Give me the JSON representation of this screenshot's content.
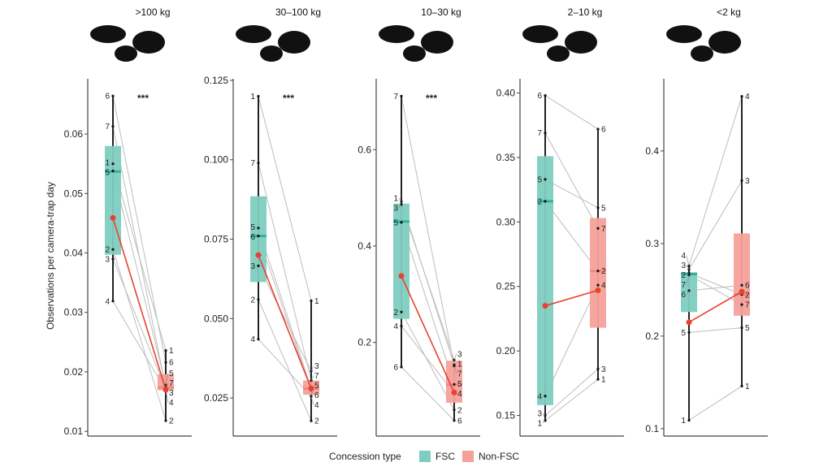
{
  "chart_data": {
    "type": "box",
    "ylabel": "Observations per camera-trap day",
    "legend": {
      "title": "Concession type",
      "position": "bottom",
      "entries": [
        "FSC",
        "Non-FSC"
      ]
    },
    "colors": {
      "FSC": "#7ecdc0",
      "Non-FSC": "#f5a09a",
      "mean": "#e8412f",
      "pair_line": "#bdbdbd",
      "median_FSC": "#2fb3a2",
      "median_Non-FSC": "#ef8a83"
    },
    "panels": [
      {
        "title": ">100 kg",
        "significance": "***",
        "ylim": [
          0.0092,
          0.0693
        ],
        "yticks": [
          0.01,
          0.02,
          0.03,
          0.04,
          0.05,
          0.06
        ],
        "tick_labels": [
          "0.01",
          "0.02",
          "0.03",
          "0.04",
          "0.05",
          "0.06"
        ],
        "FSC": {
          "box": [
            0.0397,
            0.0537,
            0.058
          ],
          "mean": 0.0459,
          "points": [
            {
              "id": "1",
              "v": 0.055
            },
            {
              "id": "2",
              "v": 0.0406
            },
            {
              "id": "3",
              "v": 0.039
            },
            {
              "id": "4",
              "v": 0.0319
            },
            {
              "id": "5",
              "v": 0.0538
            },
            {
              "id": "6",
              "v": 0.0664
            },
            {
              "id": "7",
              "v": 0.0613
            }
          ]
        },
        "Non-FSC": {
          "box": [
            0.0169,
            0.0174,
            0.0196
          ],
          "mean": 0.017,
          "points": [
            {
              "id": "1",
              "v": 0.0236
            },
            {
              "id": "2",
              "v": 0.0118
            },
            {
              "id": "3",
              "v": 0.0171
            },
            {
              "id": "4",
              "v": 0.0169
            },
            {
              "id": "5",
              "v": 0.0178
            },
            {
              "id": "6",
              "v": 0.0216
            },
            {
              "id": "7",
              "v": 0.0174
            }
          ]
        }
      },
      {
        "title": "30–100 kg",
        "significance": "***",
        "ylim": [
          0.013,
          0.1255
        ],
        "yticks": [
          0.025,
          0.05,
          0.075,
          0.1,
          0.125
        ],
        "tick_labels": [
          "0.025",
          "0.050",
          "0.075",
          "0.100",
          "0.125"
        ],
        "FSC": {
          "box": [
            0.0615,
            0.076,
            0.0885
          ],
          "mean": 0.07,
          "points": [
            {
              "id": "1",
              "v": 0.12
            },
            {
              "id": "2",
              "v": 0.056
            },
            {
              "id": "3",
              "v": 0.0666
            },
            {
              "id": "4",
              "v": 0.0435
            },
            {
              "id": "5",
              "v": 0.0785
            },
            {
              "id": "6",
              "v": 0.076
            },
            {
              "id": "7",
              "v": 0.099
            }
          ]
        },
        "Non-FSC": {
          "box": [
            0.026,
            0.028,
            0.0305
          ],
          "mean": 0.028,
          "points": [
            {
              "id": "1",
              "v": 0.0556
            },
            {
              "id": "2",
              "v": 0.0178
            },
            {
              "id": "3",
              "v": 0.0335
            },
            {
              "id": "4",
              "v": 0.0255
            },
            {
              "id": "5",
              "v": 0.028
            },
            {
              "id": "6",
              "v": 0.0274
            },
            {
              "id": "7",
              "v": 0.0305
            }
          ]
        }
      },
      {
        "title": "10–30 kg",
        "significance": "***",
        "ylim": [
          0.0057,
          0.747
        ],
        "yticks": [
          0.2,
          0.4,
          0.6
        ],
        "tick_labels": [
          "0.2",
          "0.4",
          "0.6"
        ],
        "FSC": {
          "box": [
            0.249,
            0.451,
            0.488
          ],
          "mean": 0.338,
          "points": [
            {
              "id": "1",
              "v": 0.4925
            },
            {
              "id": "2",
              "v": 0.263
            },
            {
              "id": "3",
              "v": 0.486
            },
            {
              "id": "4",
              "v": 0.234
            },
            {
              "id": "5",
              "v": 0.449
            },
            {
              "id": "6",
              "v": 0.149
            },
            {
              "id": "7",
              "v": 0.711
            }
          ]
        },
        "Non-FSC": {
          "box": [
            0.075,
            0.112,
            0.162
          ],
          "mean": 0.096,
          "points": [
            {
              "id": "1",
              "v": 0.1535
            },
            {
              "id": "2",
              "v": 0.06
            },
            {
              "id": "3",
              "v": 0.1636
            },
            {
              "id": "4",
              "v": 0.095
            },
            {
              "id": "5",
              "v": 0.113
            },
            {
              "id": "6",
              "v": 0.038
            },
            {
              "id": "7",
              "v": 0.151
            }
          ]
        }
      },
      {
        "title": "2–10 kg",
        "significance": "",
        "ylim": [
          0.134,
          0.411
        ],
        "yticks": [
          0.15,
          0.2,
          0.25,
          0.3,
          0.35,
          0.4
        ],
        "tick_labels": [
          "0.15",
          "0.20",
          "0.25",
          "0.30",
          "0.35",
          "0.40"
        ],
        "FSC": {
          "box": [
            0.158,
            0.316,
            0.351
          ],
          "mean": 0.235,
          "points": [
            {
              "id": "1",
              "v": 0.146
            },
            {
              "id": "2",
              "v": 0.316
            },
            {
              "id": "3",
              "v": 0.15
            },
            {
              "id": "4",
              "v": 0.165
            },
            {
              "id": "5",
              "v": 0.333
            },
            {
              "id": "6",
              "v": 0.398
            },
            {
              "id": "7",
              "v": 0.369
            }
          ]
        },
        "Non-FSC": {
          "box": [
            0.218,
            0.262,
            0.303
          ],
          "mean": 0.247,
          "points": [
            {
              "id": "1",
              "v": 0.178
            },
            {
              "id": "2",
              "v": 0.262
            },
            {
              "id": "3",
              "v": 0.186
            },
            {
              "id": "4",
              "v": 0.251
            },
            {
              "id": "5",
              "v": 0.311
            },
            {
              "id": "6",
              "v": 0.372
            },
            {
              "id": "7",
              "v": 0.295
            }
          ]
        }
      },
      {
        "title": "<2 kg",
        "significance": "",
        "ylim": [
          0.092,
          0.478
        ],
        "yticks": [
          0.1,
          0.2,
          0.3,
          0.4
        ],
        "tick_labels": [
          "0.1",
          "0.2",
          "0.3",
          "0.4"
        ],
        "FSC": {
          "box": [
            0.226,
            0.267,
            0.269
          ],
          "mean": 0.215,
          "points": [
            {
              "id": "1",
              "v": 0.109
            },
            {
              "id": "2",
              "v": 0.268
            },
            {
              "id": "3",
              "v": 0.272
            },
            {
              "id": "4",
              "v": 0.276
            },
            {
              "id": "5",
              "v": 0.204
            },
            {
              "id": "6",
              "v": 0.249
            },
            {
              "id": "7",
              "v": 0.266
            }
          ]
        },
        "Non-FSC": {
          "box": [
            0.222,
            0.245,
            0.311
          ],
          "mean": 0.248,
          "points": [
            {
              "id": "1",
              "v": 0.146
            },
            {
              "id": "2",
              "v": 0.245
            },
            {
              "id": "3",
              "v": 0.368
            },
            {
              "id": "4",
              "v": 0.459
            },
            {
              "id": "5",
              "v": 0.209
            },
            {
              "id": "6",
              "v": 0.255
            },
            {
              "id": "7",
              "v": 0.234
            }
          ]
        }
      }
    ]
  }
}
